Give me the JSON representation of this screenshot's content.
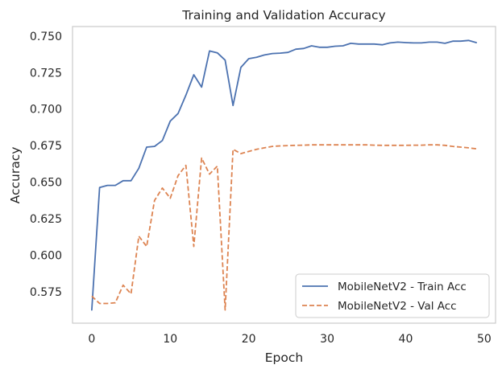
{
  "chart_data": {
    "type": "line",
    "title": "Training and Validation Accuracy",
    "xlabel": "Epoch",
    "ylabel": "Accuracy",
    "xlim": [
      -2.45,
      51.45
    ],
    "ylim": [
      0.5535,
      0.7565
    ],
    "xticks": [
      0,
      10,
      20,
      30,
      40,
      50
    ],
    "yticks": [
      0.575,
      0.6,
      0.625,
      0.65,
      0.675,
      0.7,
      0.725,
      0.75
    ],
    "ytick_labels": [
      "0.575",
      "0.600",
      "0.625",
      "0.650",
      "0.675",
      "0.700",
      "0.725",
      "0.750"
    ],
    "grid": false,
    "legend_position": "lower-right",
    "x": [
      0,
      1,
      2,
      3,
      4,
      5,
      6,
      7,
      8,
      9,
      10,
      11,
      12,
      13,
      14,
      15,
      16,
      17,
      18,
      19,
      20,
      21,
      22,
      23,
      24,
      25,
      26,
      27,
      28,
      29,
      30,
      31,
      32,
      33,
      34,
      35,
      36,
      37,
      38,
      39,
      40,
      41,
      42,
      43,
      44,
      45,
      46,
      47,
      48,
      49
    ],
    "series": [
      {
        "name": "MobileNetV2 - Train Acc",
        "color": "#4c72b0",
        "dash": "solid",
        "values": [
          0.5625,
          0.6463,
          0.6478,
          0.6478,
          0.651,
          0.651,
          0.6595,
          0.674,
          0.6745,
          0.6785,
          0.6918,
          0.697,
          0.7095,
          0.7235,
          0.715,
          0.7398,
          0.7385,
          0.7335,
          0.7025,
          0.7285,
          0.7345,
          0.7355,
          0.737,
          0.738,
          0.7383,
          0.7388,
          0.741,
          0.7415,
          0.7433,
          0.7423,
          0.7423,
          0.743,
          0.7433,
          0.745,
          0.7445,
          0.7445,
          0.7445,
          0.744,
          0.7453,
          0.7458,
          0.7455,
          0.7453,
          0.7453,
          0.7458,
          0.7458,
          0.745,
          0.7465,
          0.7465,
          0.747,
          0.7455
        ]
      },
      {
        "name": "MobileNetV2 - Val Acc",
        "color": "#dd8452",
        "dash": "dashed",
        "values": [
          0.572,
          0.567,
          0.567,
          0.5675,
          0.5795,
          0.5735,
          0.613,
          0.606,
          0.6375,
          0.646,
          0.639,
          0.6545,
          0.6615,
          0.606,
          0.6665,
          0.6555,
          0.661,
          0.5625,
          0.6725,
          0.6695,
          0.671,
          0.6725,
          0.6735,
          0.6745,
          0.6748,
          0.675,
          0.6752,
          0.6753,
          0.6755,
          0.6755,
          0.6755,
          0.6755,
          0.6755,
          0.6755,
          0.6755,
          0.6755,
          0.6753,
          0.6752,
          0.6752,
          0.6752,
          0.6752,
          0.6753,
          0.6753,
          0.6755,
          0.6755,
          0.6752,
          0.6745,
          0.674,
          0.6735,
          0.6728
        ]
      }
    ]
  }
}
